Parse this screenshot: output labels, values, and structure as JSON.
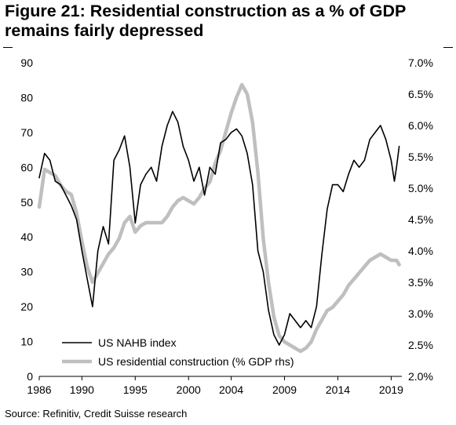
{
  "title": {
    "line1": "Figure 21: Residential construction as a % of GDP",
    "line2": "remains fairly depressed"
  },
  "source": "Source: Refinitiv, Credit Suisse research",
  "chart_data": {
    "type": "line",
    "x_ticks": [
      "1986",
      "1990",
      "1995",
      "2000",
      "2004",
      "2009",
      "2014",
      "2019"
    ],
    "x_tick_years": [
      1986,
      1990,
      1995,
      2000,
      2004,
      2009,
      2014,
      2019
    ],
    "xlim": [
      1986,
      2020
    ],
    "y_left_ticks": [
      "0",
      "10",
      "20",
      "30",
      "40",
      "50",
      "60",
      "70",
      "80",
      "90"
    ],
    "ylim_left": [
      0,
      90
    ],
    "y_right_ticks": [
      "2.0%",
      "2.5%",
      "3.0%",
      "3.5%",
      "4.0%",
      "4.5%",
      "5.0%",
      "5.5%",
      "6.0%",
      "6.5%",
      "7.0%"
    ],
    "ylim_right": [
      2.0,
      7.0
    ],
    "legend_position": "bottom-left",
    "series": [
      {
        "name": "US NAHB index",
        "axis": "left",
        "color": "#000000",
        "x": [
          1986.0,
          1986.5,
          1987.0,
          1987.5,
          1988.0,
          1988.5,
          1989.0,
          1989.5,
          1990.0,
          1990.5,
          1991.0,
          1991.5,
          1992.0,
          1992.5,
          1993.0,
          1993.5,
          1994.0,
          1994.5,
          1995.0,
          1995.5,
          1996.0,
          1996.5,
          1997.0,
          1997.5,
          1998.0,
          1998.5,
          1999.0,
          1999.5,
          2000.0,
          2000.5,
          2001.0,
          2001.5,
          2002.0,
          2002.5,
          2003.0,
          2003.5,
          2004.0,
          2004.5,
          2005.0,
          2005.5,
          2006.0,
          2006.5,
          2007.0,
          2007.5,
          2008.0,
          2008.5,
          2009.0,
          2009.5,
          2010.0,
          2010.5,
          2011.0,
          2011.5,
          2012.0,
          2012.5,
          2013.0,
          2013.5,
          2014.0,
          2014.5,
          2015.0,
          2015.5,
          2016.0,
          2016.5,
          2017.0,
          2017.5,
          2018.0,
          2018.5,
          2019.0,
          2019.3,
          2019.5,
          2019.75
        ],
        "values": [
          57,
          64,
          62,
          56,
          55,
          52,
          49,
          45,
          36,
          28,
          20,
          36,
          43,
          38,
          62,
          65,
          69,
          60,
          44,
          55,
          58,
          60,
          56,
          66,
          72,
          76,
          73,
          66,
          62,
          56,
          60,
          52,
          60,
          58,
          67,
          68,
          70,
          71,
          69,
          64,
          55,
          36,
          30,
          19,
          12,
          9,
          12,
          18,
          16,
          14,
          16,
          14,
          20,
          35,
          48,
          55,
          55,
          53,
          58,
          62,
          60,
          62,
          68,
          70,
          72,
          68,
          62,
          56,
          60,
          66
        ]
      },
      {
        "name": "US residential construction (% GDP rhs)",
        "axis": "right",
        "color": "#bfbfbf",
        "x": [
          1986.0,
          1986.5,
          1987.0,
          1987.5,
          1988.0,
          1988.5,
          1989.0,
          1989.5,
          1990.0,
          1990.5,
          1991.0,
          1991.5,
          1992.0,
          1992.5,
          1993.0,
          1993.5,
          1994.0,
          1994.5,
          1995.0,
          1995.5,
          1996.0,
          1996.5,
          1997.0,
          1997.5,
          1998.0,
          1998.5,
          1999.0,
          1999.5,
          2000.0,
          2000.5,
          2001.0,
          2001.5,
          2002.0,
          2002.5,
          2003.0,
          2003.5,
          2004.0,
          2004.5,
          2005.0,
          2005.5,
          2006.0,
          2006.5,
          2007.0,
          2007.5,
          2008.0,
          2008.5,
          2009.0,
          2009.5,
          2010.0,
          2010.5,
          2011.0,
          2011.5,
          2012.0,
          2012.5,
          2013.0,
          2013.5,
          2014.0,
          2014.5,
          2015.0,
          2015.5,
          2016.0,
          2016.5,
          2017.0,
          2017.5,
          2018.0,
          2018.5,
          2019.0,
          2019.5,
          2019.75
        ],
        "values": [
          4.7,
          5.3,
          5.25,
          5.2,
          5.05,
          4.95,
          4.9,
          4.6,
          4.15,
          3.75,
          3.5,
          3.65,
          3.8,
          3.95,
          4.05,
          4.2,
          4.45,
          4.55,
          4.3,
          4.4,
          4.45,
          4.45,
          4.45,
          4.45,
          4.55,
          4.7,
          4.8,
          4.85,
          4.8,
          4.75,
          4.85,
          5.0,
          5.1,
          5.4,
          5.6,
          5.9,
          6.2,
          6.45,
          6.65,
          6.5,
          6.05,
          5.25,
          4.2,
          3.5,
          2.95,
          2.65,
          2.55,
          2.5,
          2.45,
          2.4,
          2.45,
          2.55,
          2.75,
          2.9,
          3.05,
          3.1,
          3.2,
          3.3,
          3.45,
          3.55,
          3.65,
          3.75,
          3.85,
          3.9,
          3.95,
          3.9,
          3.85,
          3.85,
          3.78
        ]
      }
    ]
  }
}
